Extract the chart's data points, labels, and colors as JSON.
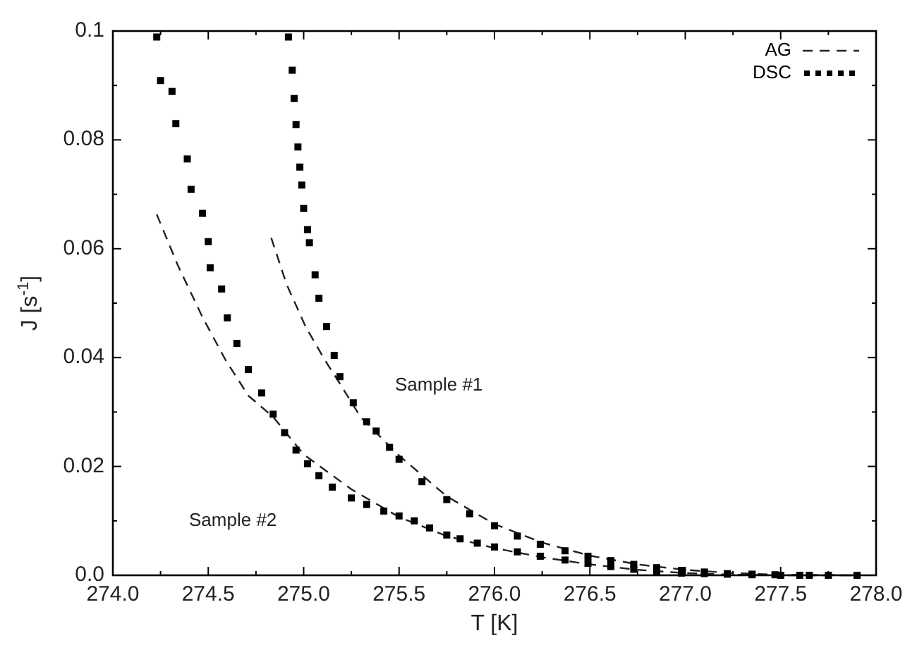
{
  "chart_data": {
    "type": "scatter",
    "xlabel": "T [K]",
    "ylabel": "J [s$^{-1}$]",
    "xlim": [
      274.0,
      278.0
    ],
    "ylim": [
      0,
      0.1
    ],
    "xticks": [
      {
        "value": 274.0,
        "label": "274.0"
      },
      {
        "value": 274.25,
        "label": null
      },
      {
        "value": 274.5,
        "label": "274.5"
      },
      {
        "value": 274.75,
        "label": null
      },
      {
        "value": 275.0,
        "label": "275.0"
      },
      {
        "value": 275.25,
        "label": null
      },
      {
        "value": 275.5,
        "label": "275.5"
      },
      {
        "value": 275.75,
        "label": null
      },
      {
        "value": 276.0,
        "label": "276.0"
      },
      {
        "value": 276.25,
        "label": null
      },
      {
        "value": 276.5,
        "label": "276.5"
      },
      {
        "value": 276.75,
        "label": null
      },
      {
        "value": 277.0,
        "label": "277.0"
      },
      {
        "value": 277.25,
        "label": null
      },
      {
        "value": 277.5,
        "label": "277.5"
      },
      {
        "value": 277.75,
        "label": null
      },
      {
        "value": 278.0,
        "label": "278.0"
      }
    ],
    "yticks": [
      {
        "value": 0,
        "label": "0.0"
      },
      {
        "value": 0.01,
        "label": null
      },
      0.02,
      {
        "value": 0.03,
        "label": null
      },
      0.04,
      {
        "value": 0.05,
        "label": null
      },
      0.06,
      {
        "value": 0.07,
        "label": null
      },
      0.08,
      {
        "value": 0.09,
        "label": null
      },
      0.1
    ],
    "legend": "top right",
    "series": [
      {
        "name": "AG",
        "type": "line",
        "line_style": "dashed",
        "marker": "none",
        "color": "#222222",
        "x": [
          274.83,
          274.91,
          275.01,
          275.11,
          275.19,
          275.3,
          275.5,
          275.75,
          276.0,
          276.25,
          276.5,
          276.75,
          277.0,
          277.25,
          277.5,
          277.9,
          null,
          274.23,
          274.34,
          274.47,
          274.59,
          274.71,
          274.84,
          275.0,
          275.25,
          275.5,
          275.75,
          276.0,
          276.25,
          276.5,
          276.75,
          277.0,
          277.25,
          277.5,
          277.9
        ],
        "values": [
          0.062,
          0.0535,
          0.0457,
          0.0396,
          0.0352,
          0.029,
          0.022,
          0.0145,
          0.0094,
          0.006,
          0.0036,
          0.002,
          0.001,
          0.0004,
          0.0001,
          0,
          null,
          0.0663,
          0.057,
          0.0474,
          0.0396,
          0.033,
          0.0291,
          0.0222,
          0.0158,
          0.0107,
          0.0072,
          0.005,
          0.0033,
          0.002,
          0.001,
          0.0004,
          0.0001,
          0,
          0
        ]
      },
      {
        "name": "DSC",
        "marker": "square",
        "color": "#000000",
        "x": [
          274.92,
          274.94,
          274.95,
          274.96,
          274.97,
          274.98,
          274.99,
          275.0,
          275.02,
          275.03,
          275.06,
          275.08,
          275.12,
          275.16,
          275.19,
          275.26,
          275.33,
          275.38,
          275.45,
          275.5,
          275.62,
          275.75,
          275.87,
          276.0,
          276.12,
          276.24,
          276.37,
          276.49,
          276.61,
          276.73,
          276.85,
          276.98,
          277.1,
          277.22,
          277.35,
          277.47,
          277.6,
          277.75,
          277.9,
          null,
          274.23,
          274.25,
          274.31,
          274.33,
          274.39,
          274.41,
          274.47,
          274.5,
          274.51,
          274.57,
          274.6,
          274.65,
          274.71,
          274.78,
          274.84,
          274.9,
          274.96,
          275.02,
          275.08,
          275.15,
          275.25,
          275.33,
          275.42,
          275.5,
          275.58,
          275.66,
          275.75,
          275.82,
          275.91,
          276.0,
          276.12,
          276.24,
          276.37,
          276.49,
          276.61,
          276.73,
          276.85,
          276.98,
          277.1,
          277.22,
          277.35,
          277.5,
          277.65,
          277.9
        ],
        "values": [
          0.0989,
          0.0928,
          0.0876,
          0.0828,
          0.0787,
          0.075,
          0.0717,
          0.0674,
          0.0635,
          0.0611,
          0.0552,
          0.0509,
          0.0457,
          0.0404,
          0.0365,
          0.0317,
          0.0282,
          0.0265,
          0.0235,
          0.0213,
          0.0172,
          0.0139,
          0.0113,
          0.0091,
          0.0072,
          0.0057,
          0.0045,
          0.0035,
          0.0027,
          0.002,
          0.0014,
          0.0009,
          0.0006,
          0.0003,
          0.0002,
          0.0001,
          0,
          0,
          0,
          null,
          0.0989,
          0.0909,
          0.0889,
          0.083,
          0.0765,
          0.0709,
          0.0665,
          0.0613,
          0.0565,
          0.0526,
          0.0473,
          0.0426,
          0.0378,
          0.0335,
          0.0296,
          0.0262,
          0.023,
          0.0205,
          0.0183,
          0.0162,
          0.0142,
          0.013,
          0.0118,
          0.0109,
          0.01,
          0.0087,
          0.0074,
          0.0067,
          0.0059,
          0.0052,
          0.0043,
          0.0035,
          0.0028,
          0.0022,
          0.0016,
          0.0011,
          0.0007,
          0.0004,
          0.0003,
          0.0002,
          0.0001,
          0,
          0,
          0
        ]
      }
    ],
    "annotations": [
      "Sample #1",
      "Sample #2"
    ]
  }
}
